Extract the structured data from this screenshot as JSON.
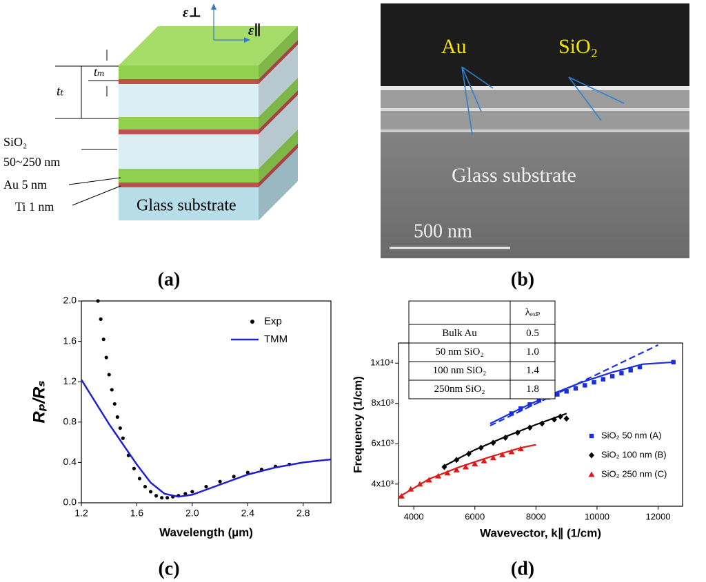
{
  "panels": {
    "a": {
      "eps_perp": "ε⊥",
      "eps_par": "ε∥",
      "t_t": "tₜ",
      "t_m": "tₘ",
      "sio2": "SiO₂",
      "sio2_range": "50~250 nm",
      "au": "Au 5 nm",
      "ti": "Ti 1 nm",
      "glass": "Glass substrate"
    },
    "b": {
      "au": "Au",
      "sio2": "SiO₂",
      "glass": "Glass substrate",
      "scale": "500 nm"
    }
  },
  "labels": [
    "(a)",
    "(b)",
    "(c)",
    "(d)"
  ],
  "chart_data": [
    {
      "type": "line",
      "xlabel": "Wavelength (µm)",
      "ylabel": "Rₚ/Rₛ",
      "xlim": [
        1.2,
        3.0
      ],
      "xticks": [
        1.2,
        1.6,
        {
          "value": 2.0,
          "label": "2.0"
        },
        2.4,
        2.8
      ],
      "ylim": [
        0,
        2.0
      ],
      "yticks": [
        {
          "value": 0,
          "label": "0.0"
        },
        0.4,
        0.8,
        1.2,
        1.6,
        {
          "value": 2.0,
          "label": "2.0"
        }
      ],
      "legend": "upper right",
      "series": [
        {
          "name": "Exp",
          "style": "dots",
          "color": "#000000",
          "x": [
            1.32,
            1.34,
            1.36,
            1.38,
            1.4,
            1.42,
            1.44,
            1.46,
            1.48,
            1.5,
            1.54,
            1.58,
            1.62,
            1.66,
            1.7,
            1.74,
            1.78,
            1.82,
            1.86,
            1.9,
            1.95,
            2.0,
            2.1,
            2.2,
            2.3,
            2.4,
            2.5,
            2.6,
            2.7
          ],
          "values": [
            2.0,
            1.82,
            1.62,
            1.44,
            1.27,
            1.12,
            0.98,
            0.85,
            0.74,
            0.64,
            0.47,
            0.34,
            0.24,
            0.16,
            0.11,
            0.07,
            0.05,
            0.05,
            0.06,
            0.07,
            0.09,
            0.11,
            0.16,
            0.21,
            0.26,
            0.3,
            0.33,
            0.36,
            0.38
          ]
        },
        {
          "name": "TMM",
          "style": "line",
          "color": "#1f1fd0",
          "x": [
            1.2,
            1.3,
            1.4,
            1.5,
            1.6,
            1.7,
            1.8,
            1.9,
            2.0,
            2.2,
            2.4,
            2.6,
            2.8,
            3.0
          ],
          "values": [
            1.22,
            1.0,
            0.78,
            0.58,
            0.38,
            0.2,
            0.09,
            0.06,
            0.08,
            0.18,
            0.28,
            0.35,
            0.4,
            0.43
          ]
        }
      ]
    },
    {
      "type": "scatter",
      "xlabel": "Wavevector, k∥ (1/cm)",
      "ylabel": "Frequency (1/cm)",
      "xlim": [
        3500,
        12800
      ],
      "xticks": [
        4000,
        6000,
        8000,
        10000,
        12000
      ],
      "ylim": [
        2900,
        11000
      ],
      "yticks": [
        {
          "value": 4000,
          "label": "4x10³"
        },
        {
          "value": 6000,
          "label": "6x10³"
        },
        {
          "value": 8000,
          "label": "8x10³"
        },
        {
          "value": 10000,
          "label": "1x10⁴"
        }
      ],
      "legend": "right",
      "series": [
        {
          "name": "SiO₂  50 nm (A)",
          "marker": "square",
          "color": "#1a2ee0",
          "x": [
            7200,
            7500,
            7800,
            8100,
            8400,
            8700,
            9000,
            9300,
            9600,
            9900,
            10200,
            10500,
            10800,
            11100,
            11400,
            12500
          ],
          "values": [
            7500,
            7750,
            7950,
            8150,
            8300,
            8450,
            8600,
            8750,
            8900,
            9050,
            9200,
            9350,
            9500,
            9650,
            9800,
            10050
          ]
        },
        {
          "name": "SiO₂ 100 nm (B)",
          "marker": "diamond",
          "color": "#000000",
          "x": [
            5000,
            5400,
            5800,
            6200,
            6600,
            7000,
            7400,
            7800,
            8200,
            8600,
            8800,
            9000
          ],
          "values": [
            4850,
            5200,
            5500,
            5800,
            6050,
            6300,
            6550,
            6800,
            7000,
            7200,
            7350,
            7250
          ]
        },
        {
          "name": "SiO₂ 250 nm (C)",
          "marker": "triangle",
          "color": "#e01a1a",
          "x": [
            3600,
            3900,
            4200,
            4500,
            4800,
            5100,
            5400,
            5700,
            6000,
            6300,
            6600,
            6900,
            7200,
            7500
          ],
          "values": [
            3400,
            3750,
            4000,
            4200,
            4400,
            4550,
            4700,
            4850,
            5000,
            5150,
            5300,
            5450,
            5600,
            5750
          ]
        }
      ],
      "fits": [
        {
          "color": "#1a2ee0",
          "dash": false,
          "x": [
            6500,
            7500,
            8500,
            9500,
            10500,
            11500,
            12500
          ],
          "values": [
            7000,
            7750,
            8450,
            9050,
            9550,
            9950,
            10050
          ]
        },
        {
          "color": "#1a2ee0",
          "dash": true,
          "x": [
            6500,
            12000
          ],
          "values": [
            6900,
            10900
          ]
        },
        {
          "color": "#000000",
          "dash": false,
          "x": [
            5000,
            6000,
            7000,
            8000,
            9000
          ],
          "values": [
            4900,
            5700,
            6350,
            6950,
            7500
          ]
        },
        {
          "color": "#e01a1a",
          "dash": false,
          "x": [
            3500,
            4500,
            5500,
            6500,
            7500,
            8000
          ],
          "values": [
            3350,
            4250,
            4850,
            5350,
            5800,
            5950
          ]
        }
      ],
      "table": {
        "header": [
          "λₑₓₚ"
        ],
        "rows": [
          [
            "Bulk Au",
            "0.5"
          ],
          [
            "50 nm SiO₂",
            "1.0"
          ],
          [
            "100 nm SiO₂",
            "1.4"
          ],
          [
            "250nm SiO₂",
            "1.8"
          ]
        ]
      }
    }
  ]
}
